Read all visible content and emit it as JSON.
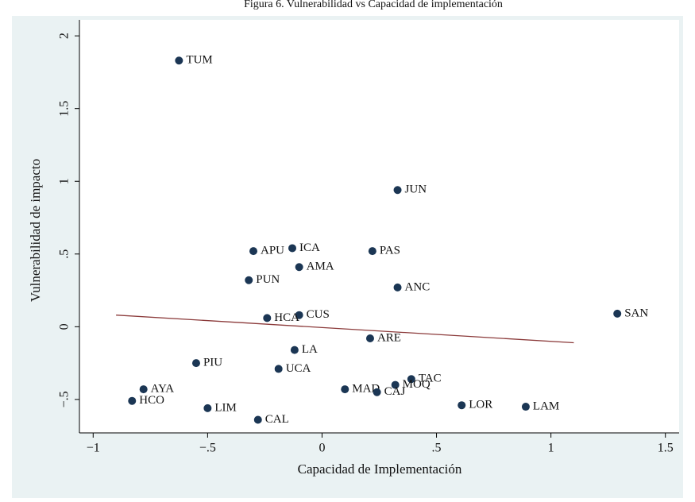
{
  "chart_data": {
    "type": "scatter",
    "title": "Figura 6. Vulnerabilidad vs Capacidad de implementación",
    "x_label": "Capacidad de Implementación",
    "y_label": "Vulnerabilidad de impacto",
    "color": "#1b3654",
    "labels": [
      "TUM",
      "JUN",
      "APU",
      "ICA",
      "PAS",
      "AMA",
      "PUN",
      "ANC",
      "CUS",
      "HCA",
      "SAN",
      "ARE",
      "LA",
      "PIU",
      "UCA",
      "TAC",
      "MOQ",
      "MAD",
      "CAJ",
      "AYA",
      "HCO",
      "LIM",
      "CAL",
      "LOR",
      "LAM"
    ],
    "x": [
      -0.625,
      0.33,
      -0.3,
      -0.13,
      0.22,
      -0.1,
      -0.32,
      0.33,
      -0.1,
      -0.24,
      1.29,
      0.21,
      -0.12,
      -0.55,
      -0.19,
      0.39,
      0.32,
      0.1,
      0.24,
      -0.78,
      -0.83,
      -0.5,
      -0.28,
      0.61,
      0.89
    ],
    "values": [
      1.83,
      0.94,
      0.52,
      0.54,
      0.52,
      0.41,
      0.32,
      0.27,
      0.08,
      0.06,
      0.09,
      -0.08,
      -0.16,
      -0.25,
      -0.29,
      -0.36,
      -0.4,
      -0.43,
      -0.45,
      -0.43,
      -0.51,
      -0.56,
      -0.64,
      -0.54,
      -0.55
    ],
    "fit_line": {
      "x": [
        -0.9,
        1.1
      ],
      "y": [
        0.08,
        -0.11
      ],
      "color": "#8b3a3a"
    },
    "xlim": [
      -1.06,
      1.56
    ],
    "ylim": [
      -0.73,
      2.11
    ],
    "xticks": [
      {
        "value": -1,
        "label": "−1"
      },
      {
        "value": -0.5,
        "label": "−.5"
      },
      0,
      {
        "value": 0.5,
        "label": ".5"
      },
      1,
      1.5
    ],
    "yticks": [
      {
        "value": -0.5,
        "label": "−.5"
      },
      0,
      {
        "value": 0.5,
        "label": ".5"
      },
      1,
      1.5,
      2
    ],
    "grid": false
  }
}
